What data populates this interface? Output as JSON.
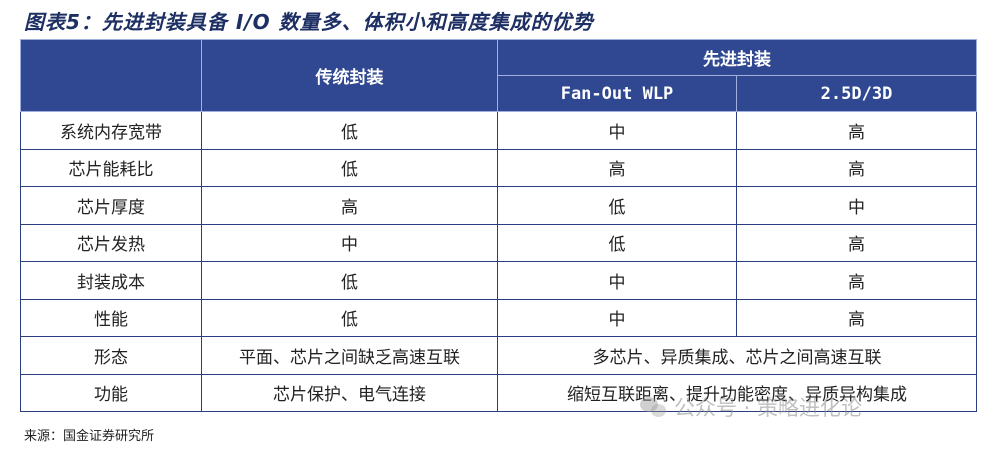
{
  "title": "图表5：先进封装具备 I/O 数量多、体积小和高度集成的优势",
  "table": {
    "header": {
      "traditional": "传统封装",
      "advanced": "先进封装",
      "fanout": "Fan-Out WLP",
      "d25_3d": "2.5D/3D"
    },
    "rows": [
      {
        "label": "系统内存宽带",
        "traditional": "低",
        "fanout": "中",
        "d25_3d": "高"
      },
      {
        "label": "芯片能耗比",
        "traditional": "低",
        "fanout": "高",
        "d25_3d": "高"
      },
      {
        "label": "芯片厚度",
        "traditional": "高",
        "fanout": "低",
        "d25_3d": "中"
      },
      {
        "label": "芯片发热",
        "traditional": "中",
        "fanout": "低",
        "d25_3d": "高"
      },
      {
        "label": "封装成本",
        "traditional": "低",
        "fanout": "中",
        "d25_3d": "高"
      },
      {
        "label": "性能",
        "traditional": "低",
        "fanout": "中",
        "d25_3d": "高"
      }
    ],
    "form_row": {
      "label": "形态",
      "traditional": "平面、芯片之间缺乏高速互联",
      "advanced": "多芯片、异质集成、芯片之间高速互联"
    },
    "function_row": {
      "label": "功能",
      "traditional": "芯片保护、电气连接",
      "advanced": "缩短互联距离、提升功能密度、异质异构集成"
    }
  },
  "source": "来源：国金证券研究所",
  "watermark": "公众号 · 策略进化论"
}
